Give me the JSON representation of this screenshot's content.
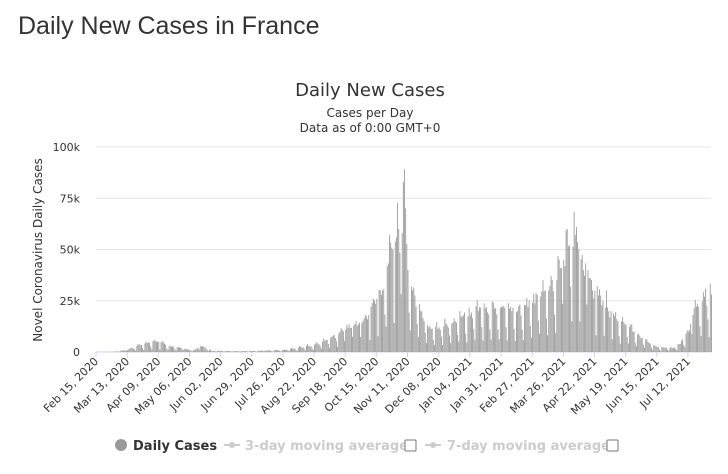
{
  "page": {
    "title": "Daily New Cases in France"
  },
  "chart_data": {
    "type": "bar",
    "title": "Daily New Cases",
    "subtitle": "Cases per Day",
    "subtitle2": "Data as of 0:00 GMT+0",
    "ylabel": "Novel Coronavirus Daily Cases",
    "xlabel": "",
    "ylim": [
      0,
      100000
    ],
    "yticks": [
      0,
      25000,
      50000,
      75000,
      100000
    ],
    "ytick_labels": [
      "0",
      "25k",
      "50k",
      "75k",
      "100k"
    ],
    "grid": true,
    "bar_color": "#999999",
    "x_start": "2020-02-15",
    "x_end": "2021-08-01",
    "x_tick_labels": [
      "Feb 15, 2020",
      "Mar 13, 2020",
      "Apr 09, 2020",
      "May 06, 2020",
      "Jun 02, 2020",
      "Jun 29, 2020",
      "Jul 26, 2020",
      "Aug 22, 2020",
      "Sep 18, 2020",
      "Oct 15, 2020",
      "Nov 11, 2020",
      "Dec 08, 2020",
      "Jan 04, 2021",
      "Jan 31, 2021",
      "Feb 27, 2021",
      "Mar 26, 2021",
      "Apr 22, 2021",
      "May 19, 2021",
      "Jun 15, 2021",
      "Jul 12, 2021"
    ],
    "series": [
      {
        "name": "Daily Cases",
        "x": [
          "2020-02-15",
          "2020-03-01",
          "2020-03-13",
          "2020-03-25",
          "2020-04-01",
          "2020-04-05",
          "2020-04-09",
          "2020-04-15",
          "2020-04-22",
          "2020-05-01",
          "2020-05-10",
          "2020-05-15",
          "2020-05-25",
          "2020-06-02",
          "2020-06-15",
          "2020-06-29",
          "2020-07-10",
          "2020-07-26",
          "2020-08-05",
          "2020-08-15",
          "2020-08-22",
          "2020-08-29",
          "2020-09-05",
          "2020-09-12",
          "2020-09-18",
          "2020-09-25",
          "2020-10-02",
          "2020-10-08",
          "2020-10-15",
          "2020-10-20",
          "2020-10-24",
          "2020-10-29",
          "2020-11-01",
          "2020-11-03",
          "2020-11-06",
          "2020-11-07",
          "2020-11-11",
          "2020-11-15",
          "2020-11-22",
          "2020-11-29",
          "2020-12-08",
          "2020-12-15",
          "2020-12-22",
          "2020-12-29",
          "2021-01-04",
          "2021-01-11",
          "2021-01-18",
          "2021-01-25",
          "2021-01-31",
          "2021-02-07",
          "2021-02-14",
          "2021-02-21",
          "2021-02-27",
          "2021-03-06",
          "2021-03-13",
          "2021-03-20",
          "2021-03-26",
          "2021-03-31",
          "2021-04-05",
          "2021-04-08",
          "2021-04-12",
          "2021-04-16",
          "2021-04-22",
          "2021-04-29",
          "2021-05-06",
          "2021-05-12",
          "2021-05-19",
          "2021-05-26",
          "2021-06-02",
          "2021-06-09",
          "2021-06-15",
          "2021-06-22",
          "2021-06-29",
          "2021-07-05",
          "2021-07-12",
          "2021-07-16",
          "2021-07-21",
          "2021-07-26",
          "2021-08-01"
        ],
        "values": [
          0,
          100,
          1000,
          3500,
          4500,
          6000,
          5000,
          3500,
          2500,
          1500,
          800,
          3000,
          600,
          500,
          400,
          500,
          700,
          1000,
          1800,
          3000,
          3500,
          5000,
          7000,
          9000,
          11000,
          13000,
          14000,
          18000,
          26000,
          30000,
          42000,
          50000,
          56000,
          60000,
          58000,
          83000,
          40000,
          30000,
          20000,
          12000,
          12000,
          13000,
          15000,
          18000,
          18000,
          20000,
          22000,
          21000,
          22000,
          21000,
          20000,
          23000,
          24000,
          27000,
          30000,
          35000,
          45000,
          52000,
          57000,
          50000,
          40000,
          40000,
          30000,
          25000,
          20000,
          15000,
          13000,
          10000,
          7000,
          4000,
          2500,
          2000,
          2000,
          4000,
          10000,
          18000,
          22000,
          27000,
          28000
        ]
      }
    ],
    "legend": {
      "position": "bottom",
      "items": [
        {
          "label": "Daily Cases",
          "color": "#999999",
          "active": true
        },
        {
          "label": "3-day moving average",
          "color": "#cccccc",
          "active": false
        },
        {
          "label": "7-day moving average",
          "color": "#cccccc",
          "active": false
        }
      ]
    }
  }
}
